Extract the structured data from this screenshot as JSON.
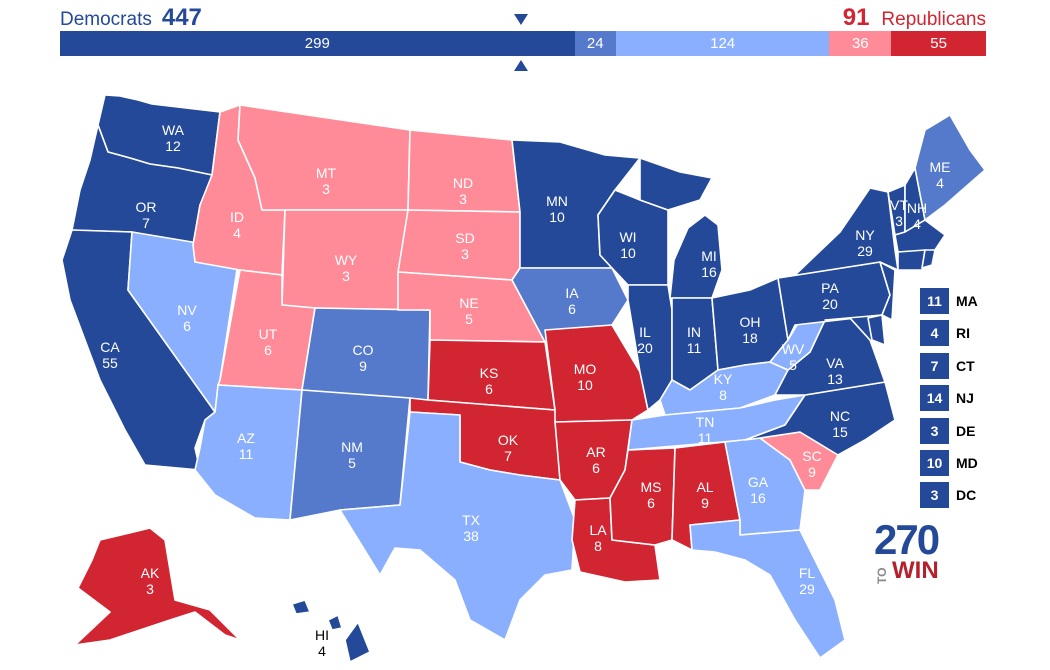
{
  "header": {
    "dem_label": "Democrats",
    "dem_total": "447",
    "rep_total": "91",
    "rep_label": "Republicans"
  },
  "colors": {
    "safe_dem": "#244999",
    "likely_dem": "#5579cb",
    "lean_dem": "#8aafff",
    "lean_rep": "#ff8b98",
    "safe_rep": "#d22532"
  },
  "bar": [
    {
      "label": "299",
      "value": 299,
      "color": "#244999"
    },
    {
      "label": "24",
      "value": 24,
      "color": "#5579cb"
    },
    {
      "label": "124",
      "value": 124,
      "color": "#8aafff"
    },
    {
      "label": "36",
      "value": 36,
      "color": "#ff8b98"
    },
    {
      "label": "55",
      "value": 55,
      "color": "#d22532"
    }
  ],
  "states": [
    {
      "abbr": "WA",
      "ev": "12",
      "color": "#244999"
    },
    {
      "abbr": "OR",
      "ev": "7",
      "color": "#244999"
    },
    {
      "abbr": "CA",
      "ev": "55",
      "color": "#244999"
    },
    {
      "abbr": "NV",
      "ev": "6",
      "color": "#8aafff"
    },
    {
      "abbr": "ID",
      "ev": "4",
      "color": "#ff8b98"
    },
    {
      "abbr": "MT",
      "ev": "3",
      "color": "#ff8b98"
    },
    {
      "abbr": "WY",
      "ev": "3",
      "color": "#ff8b98"
    },
    {
      "abbr": "UT",
      "ev": "6",
      "color": "#ff8b98"
    },
    {
      "abbr": "AZ",
      "ev": "11",
      "color": "#8aafff"
    },
    {
      "abbr": "CO",
      "ev": "9",
      "color": "#5579cb"
    },
    {
      "abbr": "NM",
      "ev": "5",
      "color": "#5579cb"
    },
    {
      "abbr": "ND",
      "ev": "3",
      "color": "#ff8b98"
    },
    {
      "abbr": "SD",
      "ev": "3",
      "color": "#ff8b98"
    },
    {
      "abbr": "NE",
      "ev": "5",
      "color": "#ff8b98"
    },
    {
      "abbr": "KS",
      "ev": "6",
      "color": "#d22532"
    },
    {
      "abbr": "OK",
      "ev": "7",
      "color": "#d22532"
    },
    {
      "abbr": "TX",
      "ev": "38",
      "color": "#8aafff"
    },
    {
      "abbr": "MN",
      "ev": "10",
      "color": "#244999"
    },
    {
      "abbr": "IA",
      "ev": "6",
      "color": "#5579cb"
    },
    {
      "abbr": "MO",
      "ev": "10",
      "color": "#d22532"
    },
    {
      "abbr": "AR",
      "ev": "6",
      "color": "#d22532"
    },
    {
      "abbr": "LA",
      "ev": "8",
      "color": "#d22532"
    },
    {
      "abbr": "WI",
      "ev": "10",
      "color": "#244999"
    },
    {
      "abbr": "IL",
      "ev": "20",
      "color": "#244999"
    },
    {
      "abbr": "MI",
      "ev": "16",
      "color": "#244999"
    },
    {
      "abbr": "IN",
      "ev": "11",
      "color": "#244999"
    },
    {
      "abbr": "OH",
      "ev": "18",
      "color": "#244999"
    },
    {
      "abbr": "KY",
      "ev": "8",
      "color": "#8aafff"
    },
    {
      "abbr": "TN",
      "ev": "11",
      "color": "#8aafff"
    },
    {
      "abbr": "MS",
      "ev": "6",
      "color": "#d22532"
    },
    {
      "abbr": "AL",
      "ev": "9",
      "color": "#d22532"
    },
    {
      "abbr": "GA",
      "ev": "16",
      "color": "#8aafff"
    },
    {
      "abbr": "FL",
      "ev": "29",
      "color": "#8aafff"
    },
    {
      "abbr": "SC",
      "ev": "9",
      "color": "#ff8b98"
    },
    {
      "abbr": "NC",
      "ev": "15",
      "color": "#244999"
    },
    {
      "abbr": "VA",
      "ev": "13",
      "color": "#244999"
    },
    {
      "abbr": "WV",
      "ev": "5",
      "color": "#8aafff"
    },
    {
      "abbr": "PA",
      "ev": "20",
      "color": "#244999"
    },
    {
      "abbr": "NY",
      "ev": "29",
      "color": "#244999"
    },
    {
      "abbr": "VT",
      "ev": "3",
      "color": "#244999"
    },
    {
      "abbr": "NH",
      "ev": "4",
      "color": "#244999"
    },
    {
      "abbr": "ME",
      "ev": "4",
      "color": "#5579cb"
    },
    {
      "abbr": "AK",
      "ev": "3",
      "color": "#d22532"
    },
    {
      "abbr": "HI",
      "ev": "4",
      "color": "#244999"
    }
  ],
  "small_states": [
    {
      "ev": "11",
      "abbr": "MA",
      "color": "#244999"
    },
    {
      "ev": "4",
      "abbr": "RI",
      "color": "#244999"
    },
    {
      "ev": "7",
      "abbr": "CT",
      "color": "#244999"
    },
    {
      "ev": "14",
      "abbr": "NJ",
      "color": "#244999"
    },
    {
      "ev": "3",
      "abbr": "DE",
      "color": "#244999"
    },
    {
      "ev": "10",
      "abbr": "MD",
      "color": "#244999"
    },
    {
      "ev": "3",
      "abbr": "DC",
      "color": "#244999"
    }
  ],
  "logo": {
    "number": "270",
    "to": "TO",
    "win": "WIN"
  }
}
